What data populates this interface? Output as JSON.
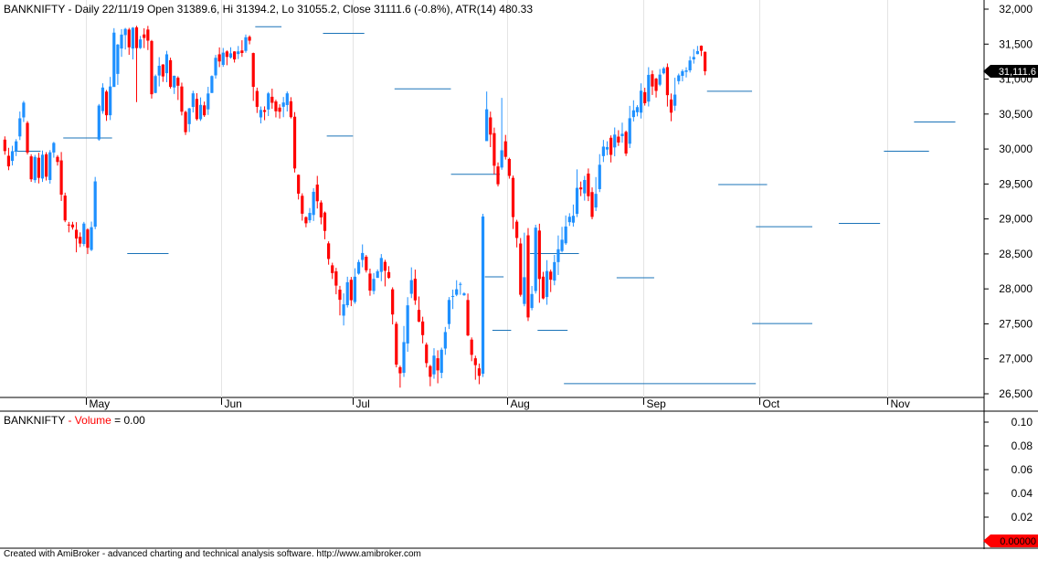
{
  "header": {
    "symbol": "BANKNIFTY",
    "info": " - Daily 22/11/19 Open 31389.6, Hi 31394.2, Lo 31055.2, Close 31111.6 (-0.8%), ATR(14) 480.33"
  },
  "volume_pane": {
    "symbol": "BANKNIFTY",
    "separator": " - ",
    "label": "Volume",
    "value_text": " = 0.00"
  },
  "price_axis": {
    "ticks": [
      "32,000",
      "31,500",
      "31,000",
      "30,500",
      "30,000",
      "29,500",
      "29,000",
      "28,500",
      "28,000",
      "27,500",
      "27,000",
      "26,500"
    ],
    "last_price_label": "31,111.6"
  },
  "volume_axis": {
    "ticks": [
      "0.10",
      "0.08",
      "0.06",
      "0.04",
      "0.02"
    ],
    "current_label": "0.00000"
  },
  "months": [
    "May",
    "Jun",
    "Jul",
    "Aug",
    "Sep",
    "Oct",
    "Nov"
  ],
  "footer": "Created with AmiBroker - advanced charting and technical analysis software. http://www.amibroker.com",
  "colors": {
    "up": "#1e90ff",
    "down": "#ff0000",
    "level": "#1a73b8",
    "current_label_bg": "#ff0000",
    "last_price_bg": "#000000"
  },
  "chart_data": {
    "type": "candlestick",
    "symbol": "BANKNIFTY",
    "ylim": [
      26500,
      32000
    ],
    "volume_ylim": [
      0,
      0.1
    ],
    "volume_values": [],
    "candles": [
      [
        30134,
        29971,
        30181,
        29918
      ],
      [
        29903,
        29752,
        30017,
        29697
      ],
      [
        29830,
        29969,
        30046,
        29765
      ],
      [
        29968,
        30110,
        30141,
        29899
      ],
      [
        30180,
        30439,
        30536,
        30128
      ],
      [
        30452,
        30663,
        30688,
        30386
      ],
      [
        30373,
        29950,
        30399,
        29921
      ],
      [
        29895,
        29567,
        29925,
        29531
      ],
      [
        29555,
        29887,
        29916,
        29516
      ],
      [
        29875,
        29588,
        29946,
        29508
      ],
      [
        29578,
        29918,
        29978,
        29529
      ],
      [
        29924,
        29604,
        29955,
        29550
      ],
      [
        29557,
        29953,
        29984,
        29505
      ],
      [
        29950,
        30087,
        30102,
        29876
      ],
      [
        29888,
        29815,
        29913,
        29763
      ],
      [
        29837,
        29347,
        29957,
        29257
      ],
      [
        29334,
        28979,
        29376,
        28954
      ],
      [
        28920,
        28909,
        28958,
        28808
      ],
      [
        28920,
        28880,
        28959,
        28848
      ],
      [
        28845,
        28720,
        28954,
        28523
      ],
      [
        28744,
        28648,
        28808,
        28597
      ],
      [
        28642,
        28934,
        28958,
        28610
      ],
      [
        28849,
        28588,
        28867,
        28498
      ],
      [
        28558,
        28882,
        28962,
        28541
      ],
      [
        28889,
        29537,
        29601,
        28854
      ],
      [
        30137,
        30621,
        30644,
        30118
      ],
      [
        30542,
        30879,
        30940,
        30504
      ],
      [
        30821,
        30483,
        30844,
        30402
      ],
      [
        30483,
        30894,
        31031,
        30414
      ],
      [
        30887,
        31664,
        31728,
        30911
      ],
      [
        31074,
        31493,
        31501,
        30917
      ],
      [
        31437,
        31636,
        31714,
        31318
      ],
      [
        31629,
        31717,
        31732,
        31423
      ],
      [
        31708,
        31454,
        31732,
        31347
      ],
      [
        31437,
        31734,
        31744,
        31281
      ],
      [
        31740,
        31443,
        31762,
        30671
      ],
      [
        31444,
        31567,
        31616,
        31430
      ],
      [
        31638,
        31588,
        31727,
        31443
      ],
      [
        31708,
        31549,
        31760,
        31415
      ],
      [
        31544,
        30783,
        31560,
        30721
      ],
      [
        30802,
        31043,
        31065,
        30797
      ],
      [
        31051,
        31190,
        31313,
        30895
      ],
      [
        31208,
        31038,
        31214,
        30960
      ],
      [
        31084,
        31354,
        31404,
        30955
      ],
      [
        31270,
        30888,
        31306,
        30864
      ],
      [
        30880,
        31047,
        31050,
        30787
      ],
      [
        31018,
        30905,
        31040,
        30701
      ],
      [
        30894,
        30534,
        30949,
        30480
      ],
      [
        30530,
        30241,
        30548,
        30201
      ],
      [
        30356,
        30581,
        30588,
        30243
      ],
      [
        30602,
        30796,
        30833,
        30523
      ],
      [
        30716,
        30428,
        30798,
        30407
      ],
      [
        30426,
        30631,
        30738,
        30401
      ],
      [
        30624,
        30482,
        30678,
        30459
      ],
      [
        30567,
        30794,
        30889,
        30487
      ],
      [
        30802,
        31043,
        31053,
        30799
      ],
      [
        31053,
        31304,
        31345,
        31006
      ],
      [
        31354,
        31252,
        31453,
        31171
      ],
      [
        31203,
        31378,
        31445,
        31175
      ],
      [
        31395,
        31317,
        31410,
        31198
      ],
      [
        31308,
        31368,
        31454,
        31293
      ],
      [
        31395,
        31281,
        31398,
        31236
      ],
      [
        31358,
        31396,
        31473,
        31286
      ],
      [
        31409,
        31373,
        31555,
        31318
      ],
      [
        31403,
        31598,
        31637,
        31376
      ],
      [
        31604,
        31549,
        31625,
        31497
      ],
      [
        31372,
        30889,
        31378,
        30688
      ],
      [
        30830,
        30603,
        30878,
        30515
      ],
      [
        30452,
        30559,
        30608,
        30366
      ],
      [
        30556,
        30531,
        30610,
        30412
      ],
      [
        30565,
        30795,
        30815,
        30471
      ],
      [
        30747,
        30661,
        30863,
        30575
      ],
      [
        30680,
        30540,
        30706,
        30452
      ],
      [
        30592,
        30533,
        30640,
        30436
      ],
      [
        30604,
        30665,
        30744,
        30455
      ],
      [
        30629,
        30796,
        30823,
        30537
      ],
      [
        30682,
        30456,
        30741,
        30437
      ],
      [
        30462,
        29722,
        30528,
        29664
      ],
      [
        29631,
        29362,
        29636,
        29278
      ],
      [
        29331,
        29075,
        29367,
        28976
      ],
      [
        29026,
        28938,
        29037,
        28881
      ],
      [
        28981,
        29086,
        29157,
        28945
      ],
      [
        29057,
        29388,
        29440,
        28971
      ],
      [
        29491,
        29253,
        29616,
        29149
      ],
      [
        29235,
        29023,
        29266,
        28923
      ],
      [
        29091,
        28829,
        29107,
        28709
      ],
      [
        28651,
        28428,
        28680,
        28346
      ],
      [
        28337,
        28226,
        28374,
        28142
      ],
      [
        28251,
        28047,
        28301,
        27923
      ],
      [
        27989,
        27844,
        28043,
        27621
      ],
      [
        27617,
        27779,
        27936,
        27477
      ],
      [
        27767,
        28095,
        28174,
        27734
      ],
      [
        28130,
        27838,
        28171,
        27753
      ],
      [
        27813,
        28174,
        28295,
        27787
      ],
      [
        28218,
        28384,
        28417,
        28203
      ],
      [
        28414,
        28513,
        28636,
        28309
      ],
      [
        28460,
        28266,
        28484,
        28234
      ],
      [
        28219,
        27975,
        28290,
        27902
      ],
      [
        27970,
        28143,
        28227,
        27922
      ],
      [
        28157,
        28252,
        28279,
        28183
      ],
      [
        28243,
        28442,
        28498,
        28110
      ],
      [
        28386,
        28260,
        28416,
        28036
      ],
      [
        28240,
        28158,
        28325,
        28144
      ],
      [
        27994,
        27634,
        28023,
        27492
      ],
      [
        27501,
        26917,
        27532,
        26878
      ],
      [
        26880,
        26793,
        26902,
        26588
      ],
      [
        26800,
        27239,
        27470,
        26741
      ],
      [
        27219,
        27765,
        27882,
        27100
      ],
      [
        27930,
        28125,
        28308,
        27868
      ],
      [
        28145,
        27836,
        28276,
        27772
      ],
      [
        27700,
        27532,
        27892,
        27524
      ],
      [
        27534,
        27339,
        27602,
        27221
      ],
      [
        27203,
        26939,
        27233,
        26876
      ],
      [
        26896,
        26743,
        26914,
        26608
      ],
      [
        26778,
        27046,
        27152,
        26715
      ],
      [
        27008,
        26835,
        27122,
        26650
      ],
      [
        26800,
        27130,
        27160,
        26722
      ],
      [
        27147,
        27383,
        27456,
        27057
      ],
      [
        27497,
        27842,
        27883,
        27426
      ],
      [
        27893,
        27899,
        27989,
        27712
      ],
      [
        27916,
        27995,
        28124,
        27896
      ],
      [
        28067,
        28071,
        28097,
        27916
      ],
      [
        27909,
        27936,
        27952,
        27901
      ],
      [
        27841,
        27335,
        27934,
        27324
      ],
      [
        27275,
        27057,
        27306,
        26966
      ],
      [
        27008,
        26910,
        27045,
        26701
      ],
      [
        26864,
        26757,
        26933,
        26637
      ],
      [
        26787,
        29035,
        29074,
        26740
      ],
      [
        30113,
        30568,
        30822,
        30121
      ],
      [
        30452,
        30206,
        30535,
        30027
      ],
      [
        30227,
        29761,
        30306,
        29637
      ],
      [
        29751,
        29496,
        29808,
        29465
      ],
      [
        29735,
        29982,
        30731,
        29703
      ],
      [
        30110,
        29888,
        30202,
        29849
      ],
      [
        29858,
        29616,
        29876,
        29576
      ],
      [
        29588,
        29027,
        29621,
        28856
      ],
      [
        28961,
        28728,
        28988,
        28593
      ],
      [
        28649,
        27916,
        28727,
        27889
      ],
      [
        27785,
        28167,
        28804,
        27751
      ],
      [
        28766,
        27592,
        28870,
        27540
      ],
      [
        27727,
        27927,
        28042,
        27694
      ],
      [
        27969,
        28876,
        28917,
        27933
      ],
      [
        28834,
        28142,
        28932,
        27801
      ],
      [
        28175,
        27864,
        28244,
        27851
      ],
      [
        27884,
        28256,
        28411,
        27773
      ],
      [
        28247,
        28131,
        28276,
        27955
      ],
      [
        28119,
        28383,
        28486,
        28052
      ],
      [
        28383,
        28567,
        28764,
        28199
      ],
      [
        28542,
        28703,
        28887,
        28521
      ],
      [
        28652,
        28892,
        29050,
        28630
      ],
      [
        28954,
        29031,
        29082,
        28900
      ],
      [
        28947,
        29045,
        29206,
        28890
      ],
      [
        29073,
        29445,
        29709,
        29027
      ],
      [
        29450,
        29423,
        29535,
        29326
      ],
      [
        29366,
        29557,
        29616,
        29262
      ],
      [
        29649,
        29325,
        29722,
        29255
      ],
      [
        29384,
        29029,
        29451,
        28995
      ],
      [
        29164,
        29359,
        29599,
        29113
      ],
      [
        29427,
        29775,
        29927,
        29384
      ],
      [
        29899,
        30034,
        30130,
        29814
      ],
      [
        29992,
        30028,
        30111,
        29911
      ],
      [
        30161,
        29917,
        30195,
        29808
      ],
      [
        30023,
        30206,
        30308,
        29896
      ],
      [
        30177,
        30093,
        30269,
        30044
      ],
      [
        30184,
        30218,
        30377,
        30090
      ],
      [
        30245,
        29935,
        30264,
        29900
      ],
      [
        30075,
        30440,
        30617,
        30014
      ],
      [
        30457,
        30553,
        30697,
        30394
      ],
      [
        30526,
        30599,
        30627,
        30467
      ],
      [
        30520,
        30834,
        30939,
        30436
      ],
      [
        30813,
        30655,
        30876,
        30621
      ],
      [
        30678,
        31060,
        31170,
        30608
      ],
      [
        31070,
        30894,
        31123,
        30773
      ],
      [
        31005,
        30831,
        31018,
        30736
      ],
      [
        30920,
        31064,
        31144,
        30899
      ],
      [
        31083,
        31153,
        31174,
        31067
      ],
      [
        31171,
        30770,
        31223,
        30607
      ],
      [
        30708,
        30520,
        30794,
        30397
      ],
      [
        30619,
        30778,
        31019,
        30546
      ],
      [
        30970,
        31053,
        31079,
        30924
      ],
      [
        31046,
        31113,
        31138,
        30968
      ],
      [
        31103,
        31124,
        31169,
        31023
      ],
      [
        31125,
        31266,
        31326,
        31094
      ],
      [
        31282,
        31316,
        31428,
        31221
      ],
      [
        31357,
        31400,
        31474,
        31354
      ],
      [
        31477,
        31404,
        31480,
        31329
      ],
      [
        31389.6,
        31111.6,
        31394.2,
        31055.2
      ]
    ],
    "levels": [
      {
        "price": 29968,
        "from": 3,
        "to": 9
      },
      {
        "price": 30158,
        "from": 16,
        "to": 28
      },
      {
        "price": 28505,
        "from": 33,
        "to": 43
      },
      {
        "price": 31749,
        "from": 67,
        "to": 73
      },
      {
        "price": 31654,
        "from": 85,
        "to": 95
      },
      {
        "price": 30186,
        "from": 86,
        "to": 92
      },
      {
        "price": 30860,
        "from": 104,
        "to": 118
      },
      {
        "price": 29638,
        "from": 119,
        "to": 131
      },
      {
        "price": 28172,
        "from": 128,
        "to": 132
      },
      {
        "price": 27408,
        "from": 130,
        "to": 134
      },
      {
        "price": 28505,
        "from": 140,
        "to": 152
      },
      {
        "price": 27408,
        "from": 142,
        "to": 149
      },
      {
        "price": 26645,
        "from": 149,
        "to": 199
      },
      {
        "price": 28159,
        "from": 163,
        "to": 172
      },
      {
        "price": 30826,
        "from": 187,
        "to": 198
      },
      {
        "price": 29492,
        "from": 190,
        "to": 202
      },
      {
        "price": 28889,
        "from": 200,
        "to": 214
      },
      {
        "price": 27505,
        "from": 199,
        "to": 214
      },
      {
        "price": 28936,
        "from": 222,
        "to": 232
      },
      {
        "price": 29969,
        "from": 234,
        "to": 245
      },
      {
        "price": 30387,
        "from": 242,
        "to": 252
      }
    ],
    "month_starts": [
      {
        "label": "May",
        "index": 22
      },
      {
        "label": "Jun",
        "index": 58
      },
      {
        "label": "Jul",
        "index": 93
      },
      {
        "label": "Aug",
        "index": 134
      },
      {
        "label": "Sep",
        "index": 170
      },
      {
        "label": "Oct",
        "index": 201
      },
      {
        "label": "Nov",
        "index": 235
      }
    ]
  }
}
